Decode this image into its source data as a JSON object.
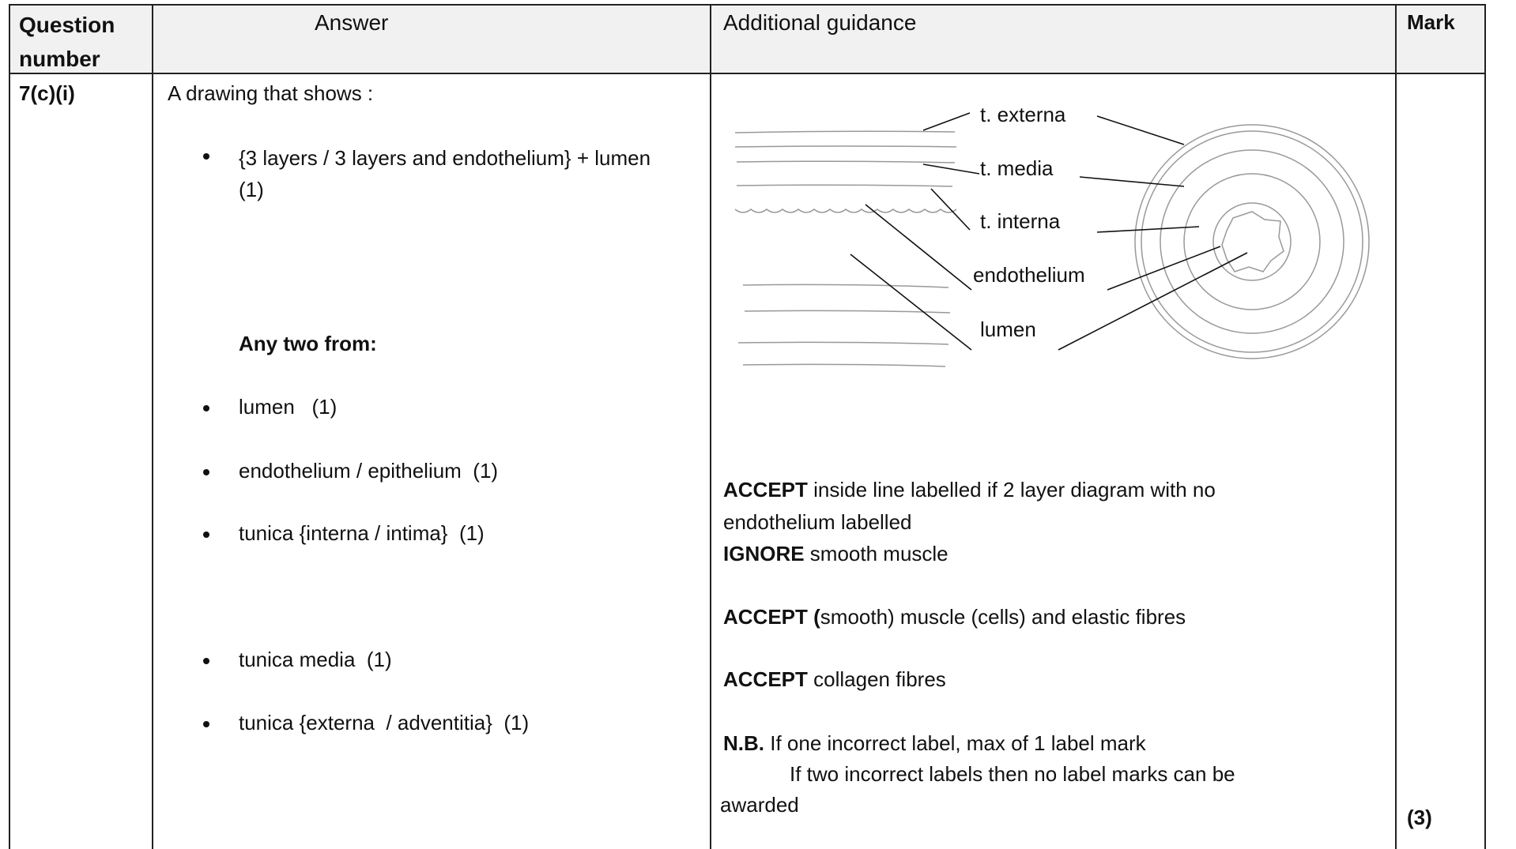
{
  "table": {
    "headers": [
      "Question number",
      "Answer",
      "Additional guidance",
      "Mark"
    ],
    "row": {
      "question": "7(c)(i)",
      "answer": {
        "intro": "A drawing that shows :",
        "bullets": [
          "{3 layers / 3 layers and endothelium} + lumen  (1)"
        ],
        "any_two": "Any two from:",
        "options": [
          "lumen   (1)",
          "endothelium / epithelium  (1)",
          "tunica {interna / intima}  (1)",
          "tunica media  (1)",
          "tunica {externa  / adventitia}  (1)"
        ]
      },
      "guidance": {
        "diagram_labels": [
          "t. externa",
          "t. media",
          "t. interna",
          "endothelium",
          "lumen"
        ],
        "notes": [
          {
            "bold": "ACCEPT",
            "text": " inside line labelled if 2 layer diagram with no"
          },
          {
            "text": "endothelium labelled"
          },
          {
            "bold": "IGNORE",
            "text": " smooth muscle"
          },
          {
            "bold": "ACCEPT (",
            "text": "smooth) muscle (cells) and elastic fibres"
          },
          {
            "bold": "ACCEPT",
            "text": " collagen fibres"
          },
          {
            "bold": "N.B.",
            "text": " If one incorrect label, max of 1 label mark"
          },
          {
            "text": "If two incorrect labels then no label marks can be"
          },
          {
            "text": "awarded"
          }
        ]
      },
      "mark": "(3)"
    }
  }
}
